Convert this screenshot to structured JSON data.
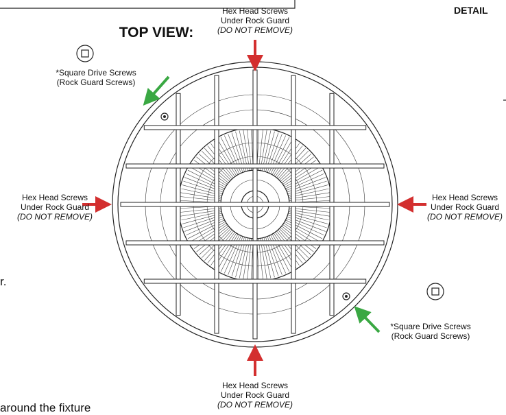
{
  "title": "TOP VIEW:",
  "detail_heading": "DETAIL",
  "hex_callouts": [
    {
      "line1": "Hex Head Screws",
      "line2": "Under Rock Guard",
      "line3": "(DO NOT REMOVE)"
    },
    {
      "line1": "Hex Head Screws",
      "line2": "Under Rock Guard",
      "line3": "(DO NOT REMOVE)"
    },
    {
      "line1": "Hex Head Screws",
      "line2": "Under Rock Guard",
      "line3": "(DO NOT REMOVE)"
    },
    {
      "line1": "Hex Head Screws",
      "line2": "Under Rock Guard",
      "line3": "(DO NOT REMOVE)"
    }
  ],
  "square_callouts": [
    {
      "line1": "*Square Drive Screws",
      "line2": "(Rock Guard Screws)"
    },
    {
      "line1": "*Square Drive Screws",
      "line2": "(Rock Guard Screws)"
    }
  ],
  "fragments": [
    "r.",
    "around the fixture"
  ]
}
